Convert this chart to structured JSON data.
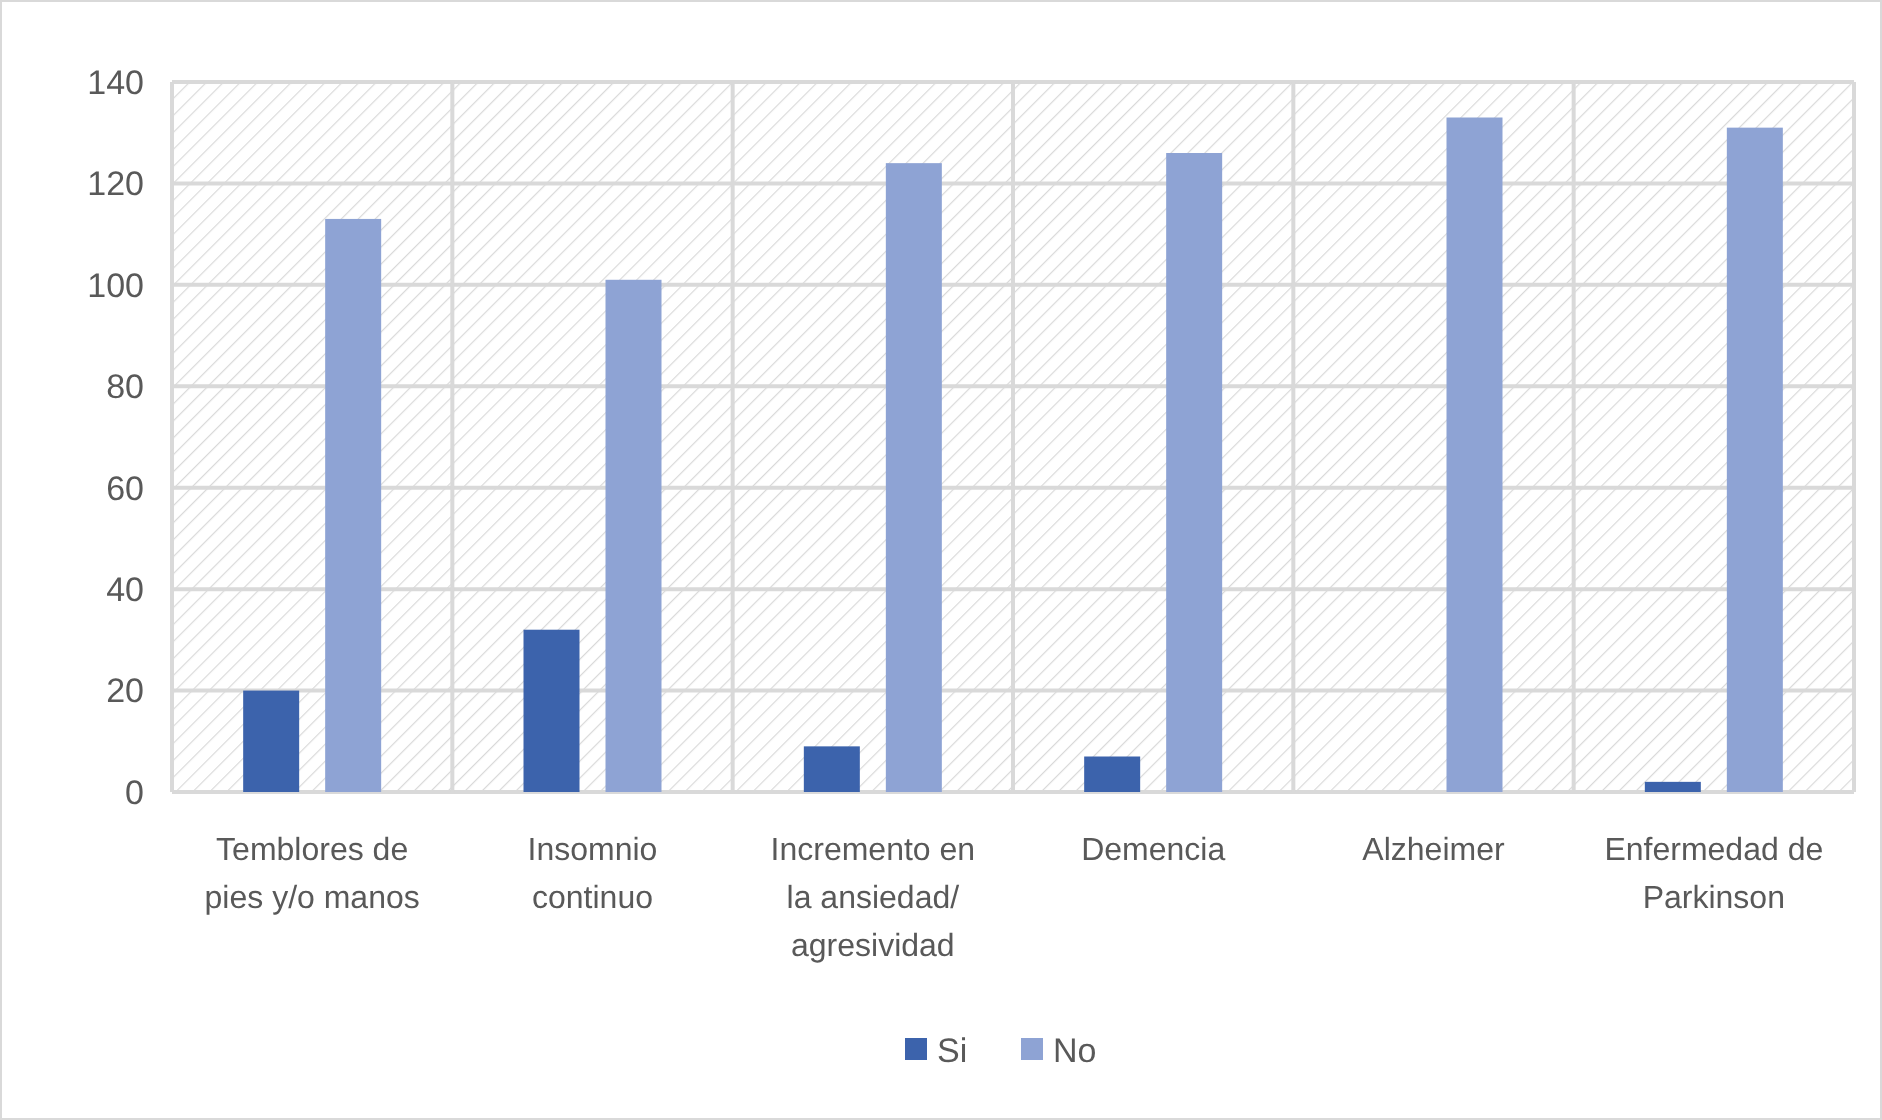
{
  "chart_data": {
    "type": "bar",
    "categories": [
      "Temblores de pies y/o manos",
      "Insomnio continuo",
      "Incremento en la ansiedad/ agresividad",
      "Demencia",
      "Alzheimer",
      "Enfermedad de Parkinson"
    ],
    "series": [
      {
        "name": "Si",
        "color": "#3c63ac",
        "values": [
          20,
          32,
          9,
          7,
          0,
          2
        ]
      },
      {
        "name": "No",
        "color": "#8ea3d4",
        "values": [
          113,
          101,
          124,
          126,
          133,
          131
        ]
      }
    ],
    "ylim": [
      0,
      140
    ],
    "yticks": [
      0,
      20,
      40,
      60,
      80,
      100,
      120,
      140
    ],
    "grid": true,
    "legend": "bottom"
  }
}
